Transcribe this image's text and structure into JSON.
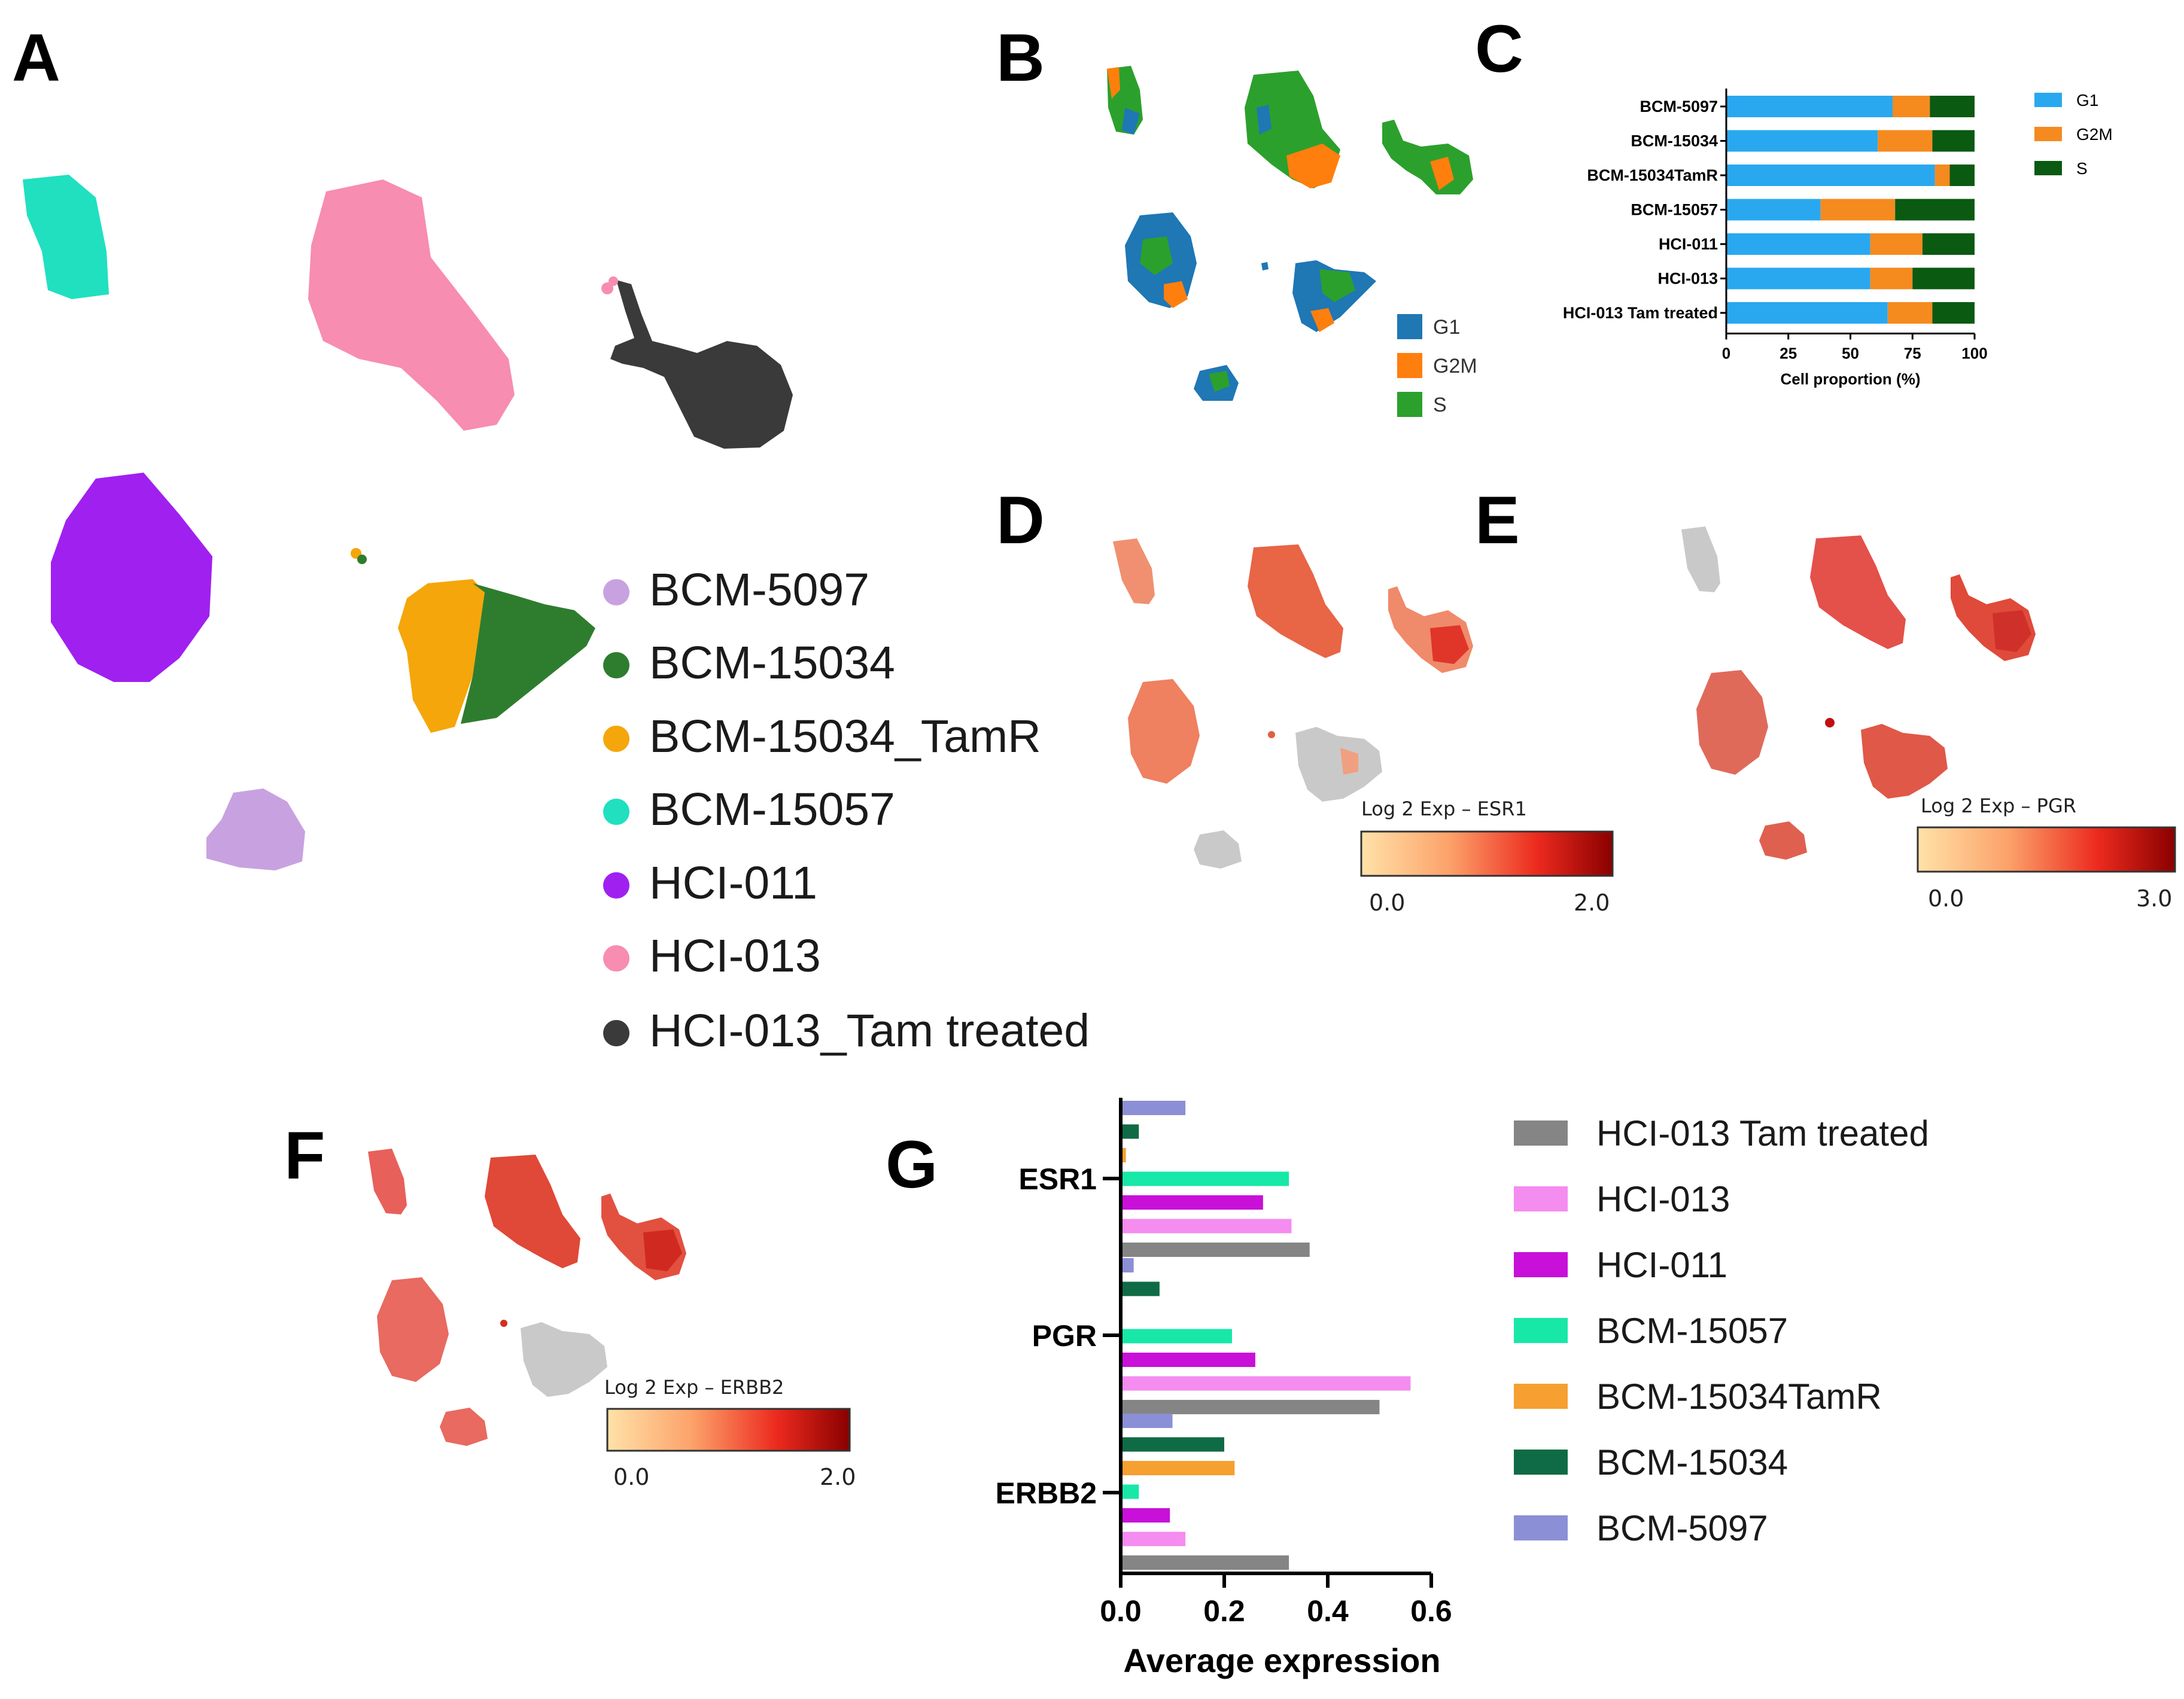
{
  "panels": {
    "a": "A",
    "b": "B",
    "c": "C",
    "d": "D",
    "e": "E",
    "f": "F",
    "g": "G"
  },
  "panel_a_legend": [
    {
      "label": "BCM-5097",
      "color": "#c8a2e0"
    },
    {
      "label": "BCM-15034",
      "color": "#2e7d2e"
    },
    {
      "label": "BCM-15034_TamR",
      "color": "#f5a60a"
    },
    {
      "label": "BCM-15057",
      "color": "#20e0c0"
    },
    {
      "label": "HCI-011",
      "color": "#a020f0"
    },
    {
      "label": "HCI-013",
      "color": "#f78db0"
    },
    {
      "label": "HCI-013_Tam treated",
      "color": "#3a3a3a"
    }
  ],
  "panel_b_legend": [
    {
      "label": "G1",
      "color": "#1f77b4"
    },
    {
      "label": "G2M",
      "color": "#ff7f0e"
    },
    {
      "label": "S",
      "color": "#2ca02c"
    }
  ],
  "colorbars": {
    "d": {
      "label": "Log 2 Exp – ESR1",
      "min": "0.0",
      "max": "2.0"
    },
    "e": {
      "label": "Log 2 Exp – PGR",
      "min": "0.0",
      "max": "3.0"
    },
    "f": {
      "label": "Log 2 Exp – ERBB2",
      "min": "0.0",
      "max": "2.0"
    }
  },
  "chart_data": [
    {
      "id": "C",
      "type": "bar",
      "orientation": "horizontal",
      "stacked": true,
      "categories": [
        "BCM-5097",
        "BCM-15034",
        "BCM-15034TamR",
        "BCM-15057",
        "HCI-011",
        "HCI-013",
        "HCI-013 Tam treated"
      ],
      "series": [
        {
          "name": "G1",
          "color": "#29a8f0",
          "values": [
            67,
            61,
            84,
            38,
            58,
            58,
            65
          ]
        },
        {
          "name": "G2M",
          "color": "#f58a1f",
          "values": [
            15,
            22,
            6,
            30,
            21,
            17,
            18
          ]
        },
        {
          "name": "S",
          "color": "#0a5a12",
          "values": [
            18,
            17,
            10,
            32,
            21,
            25,
            17
          ]
        }
      ],
      "xlabel": "Cell proportion (%)",
      "xlim": [
        0,
        100
      ],
      "xticks": [
        "0",
        "25",
        "50",
        "75",
        "100"
      ]
    },
    {
      "id": "G",
      "type": "bar",
      "orientation": "horizontal",
      "categories": [
        "ESR1",
        "PGR",
        "ERBB2"
      ],
      "series": [
        {
          "name": "BCM-5097",
          "color": "#8b8fd6",
          "values": [
            0.125,
            0.025,
            0.1
          ]
        },
        {
          "name": "BCM-15034",
          "color": "#0f6b45",
          "values": [
            0.035,
            0.075,
            0.2
          ]
        },
        {
          "name": "BCM-15034TamR",
          "color": "#f5a030",
          "values": [
            0.01,
            0.0,
            0.22
          ]
        },
        {
          "name": "BCM-15057",
          "color": "#17e8a8",
          "values": [
            0.325,
            0.215,
            0.035
          ]
        },
        {
          "name": "HCI-011",
          "color": "#c810d8",
          "values": [
            0.275,
            0.26,
            0.095
          ]
        },
        {
          "name": "HCI-013",
          "color": "#f58cf0",
          "values": [
            0.33,
            0.56,
            0.125
          ]
        },
        {
          "name": "HCI-013 Tam treated",
          "color": "#858585",
          "values": [
            0.365,
            0.5,
            0.325
          ]
        }
      ],
      "legend_order": [
        "HCI-013 Tam treated",
        "HCI-013",
        "HCI-011",
        "BCM-15057",
        "BCM-15034TamR",
        "BCM-15034",
        "BCM-5097"
      ],
      "xlabel": "Average expression",
      "xlim": [
        0,
        0.6
      ],
      "xticks": [
        "0.0",
        "0.2",
        "0.4",
        "0.6"
      ]
    }
  ]
}
